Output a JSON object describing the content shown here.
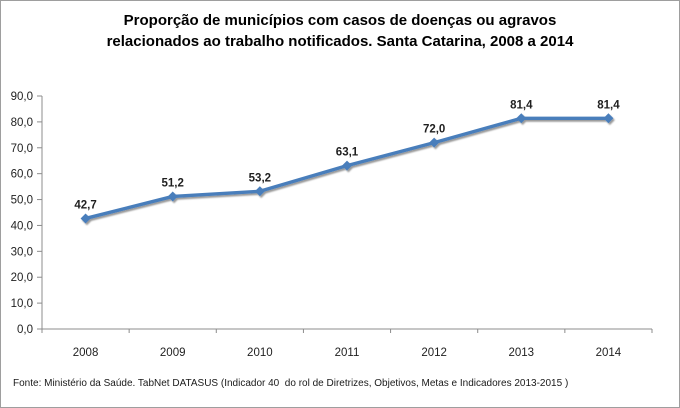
{
  "header": {
    "title_line1": "Proporção de municípios com casos de doenças ou agravos",
    "title_line2": "relacionados ao trabalho notificados. Santa Catarina, 2008 a 2014"
  },
  "footer": {
    "source": "Fonte: Ministério da Saúde. TabNet DATASUS (Indicador 40  do rol de Diretrizes, Objetivos, Metas e Indicadores 2013-2015 )"
  },
  "chart_data": {
    "type": "line",
    "title": "Proporção de municípios com casos de doenças ou agravos relacionados ao trabalho notificados. Santa Catarina, 2008 a 2014",
    "categories": [
      "2008",
      "2009",
      "2010",
      "2011",
      "2012",
      "2013",
      "2014"
    ],
    "values": [
      42.7,
      51.2,
      53.2,
      63.1,
      72.0,
      81.4,
      81.4
    ],
    "data_labels": [
      "42,7",
      "51,2",
      "53,2",
      "63,1",
      "72,0",
      "81,4",
      "81,4"
    ],
    "y_tick_labels": [
      "0,0",
      "10,0",
      "20,0",
      "30,0",
      "40,0",
      "50,0",
      "60,0",
      "70,0",
      "80,0",
      "90,0"
    ],
    "ylim": [
      0,
      90
    ],
    "y_step": 10,
    "grid": false,
    "legend": "none",
    "marker": "diamond",
    "series_color": "#4a7ebb",
    "axis_color": "#8c8c8c",
    "text_color": "#1f1f1f",
    "xlabel": "",
    "ylabel": ""
  }
}
